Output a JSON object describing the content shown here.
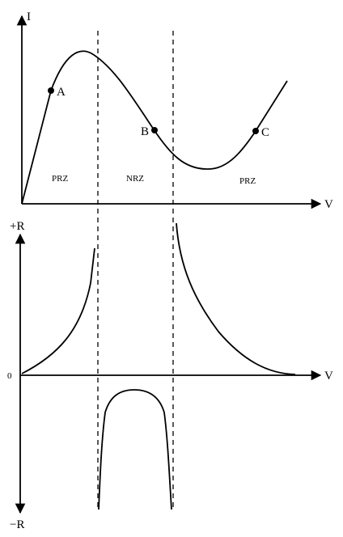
{
  "top_graph": {
    "y_axis_label": "I",
    "x_axis_label": "V",
    "points": [
      {
        "name": "A"
      },
      {
        "name": "B"
      },
      {
        "name": "C"
      }
    ],
    "regions": [
      "PRZ",
      "NRZ",
      "PRZ"
    ]
  },
  "bottom_graph": {
    "y_top_label": "+R",
    "y_bottom_label": "−R",
    "zero_label": "0",
    "x_axis_label": "V"
  }
}
